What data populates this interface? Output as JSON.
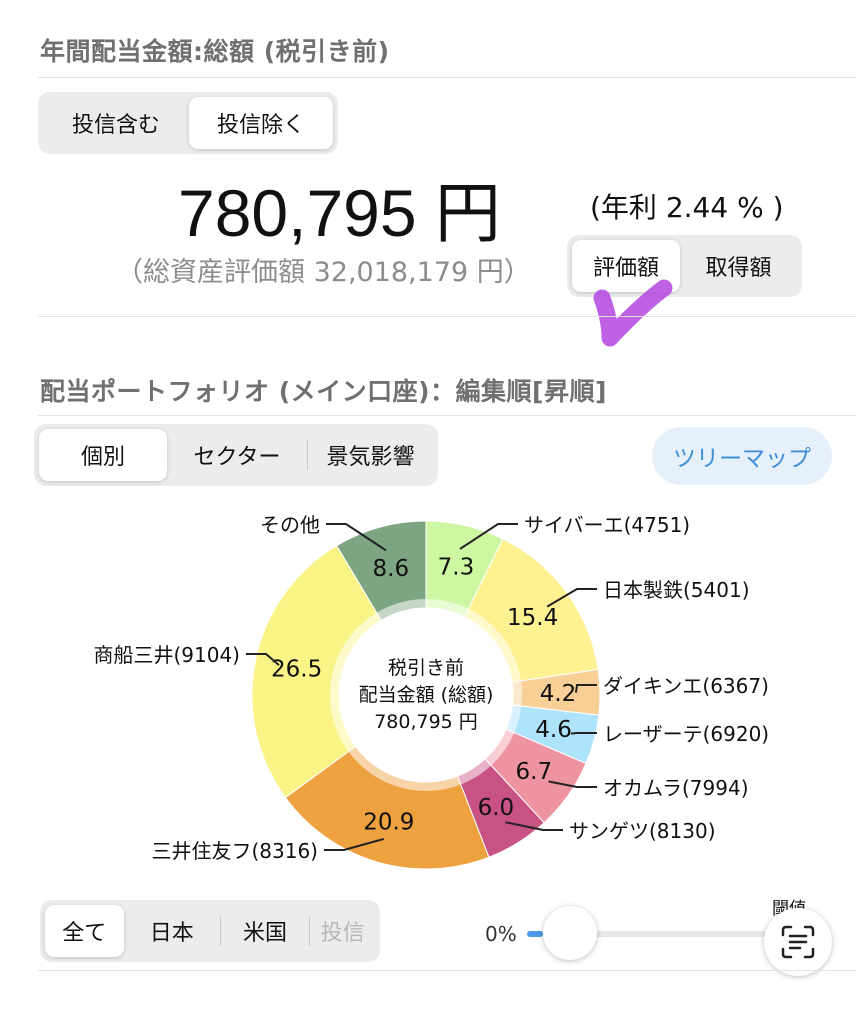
{
  "header": {
    "title": "年間配当金額:総額 (税引き前)"
  },
  "fund_toggle": {
    "options": [
      "投信含む",
      "投信除く"
    ],
    "selected": 1
  },
  "summary": {
    "amount": "780,795 円",
    "yield": "(年利 2.44 % )",
    "total_assets": "（総資産評価額 32,018,179 円）"
  },
  "valuation_toggle": {
    "options": [
      "評価額",
      "取得額"
    ],
    "selected": 0
  },
  "portfolio": {
    "title": "配当ポートフォリオ (メイン口座)：編集順[昇順]"
  },
  "view_toggle": {
    "options": [
      "個別",
      "セクター",
      "景気影響"
    ],
    "selected": 0
  },
  "treemap_label": "ツリーマップ",
  "chart_data": {
    "type": "pie",
    "title": "",
    "center_text": [
      "税引き前",
      "配当金額 (総額)",
      "780,795 円"
    ],
    "labels": [
      "サイバーエ(4751)",
      "日本製鉄(5401)",
      "ダイキンエ(6367)",
      "レーザーテ(6920)",
      "オカムラ(7994)",
      "サンゲツ(8130)",
      "三井住友フ(8316)",
      "商船三井(9104)",
      "その他"
    ],
    "values": [
      7.3,
      15.4,
      4.2,
      4.6,
      6.7,
      6.0,
      20.9,
      26.5,
      8.6
    ],
    "colors": [
      "#cdf7a3",
      "#fdf191",
      "#f8cf96",
      "#ade3fb",
      "#ee94a0",
      "#c95285",
      "#eea13f",
      "#f9f485",
      "#7ea582"
    ]
  },
  "region_toggle": {
    "options": [
      "全て",
      "日本",
      "米国",
      "投信"
    ],
    "selected": 0,
    "disabled": [
      3
    ]
  },
  "slider": {
    "label": "0%",
    "value_percent": 0
  },
  "threshold_label": "閾値",
  "icons": {
    "scan": "text-scan-icon",
    "checkmark": "checkmark-annotation"
  }
}
